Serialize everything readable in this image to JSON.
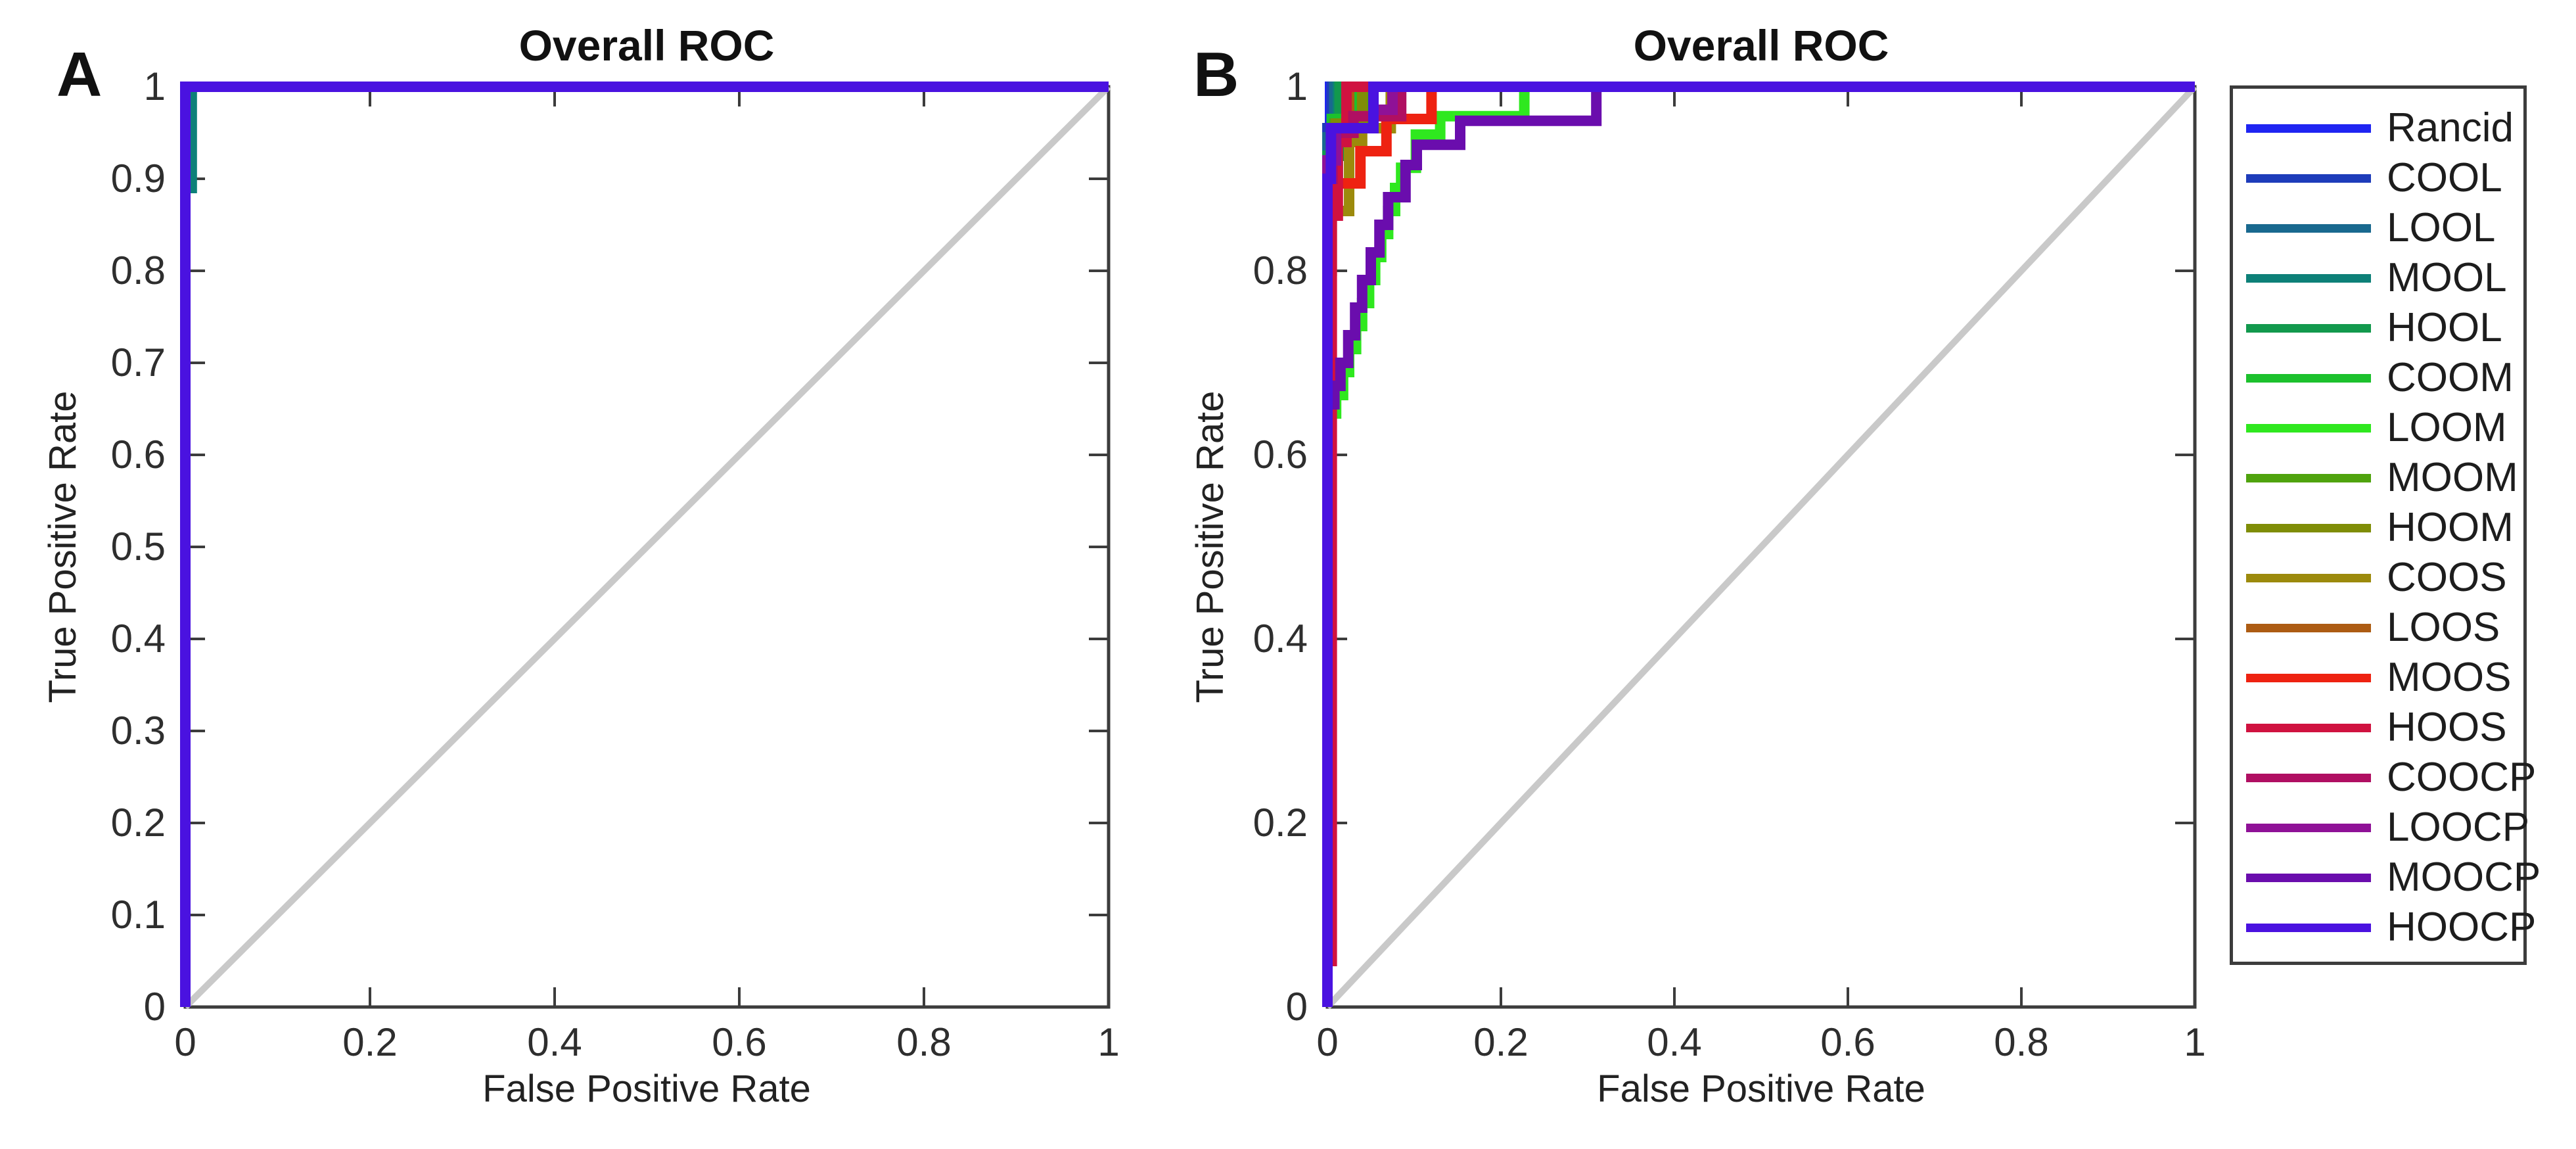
{
  "figure": {
    "background": "#ffffff",
    "axis_color": "#3c3c3c",
    "reference_line_color": "#c9c9c9",
    "text_color": "#222222"
  },
  "chart_data": [
    {
      "type": "line",
      "panel_label": "A",
      "title": "Overall ROC",
      "xlabel": "False Positive Rate",
      "ylabel": "True Positive Rate",
      "xlim": [
        0,
        1
      ],
      "ylim": [
        0,
        1
      ],
      "xticks": [
        0,
        0.2,
        0.4,
        0.6,
        0.8,
        1
      ],
      "yticks": [
        0,
        0.1,
        0.2,
        0.3,
        0.4,
        0.5,
        0.6,
        0.7,
        0.8,
        0.9,
        1
      ],
      "grid": false,
      "reference_diagonal": true,
      "legend_position": "none",
      "series": [
        {
          "name": "Rancid",
          "color": "#1f25f2",
          "points": [
            [
              0,
              0
            ],
            [
              0,
              1
            ],
            [
              1,
              1
            ]
          ]
        },
        {
          "name": "COOL",
          "color": "#1e3cba",
          "points": [
            [
              0,
              0
            ],
            [
              0,
              1
            ],
            [
              1,
              1
            ]
          ]
        },
        {
          "name": "LOOL",
          "color": "#19698f",
          "points": [
            [
              0,
              0
            ],
            [
              0,
              1
            ],
            [
              1,
              1
            ]
          ]
        },
        {
          "name": "MOOL",
          "color": "#0d8078",
          "points": [
            [
              0,
              0
            ],
            [
              0,
              0.89
            ],
            [
              0.007,
              0.89
            ],
            [
              0.007,
              1
            ],
            [
              1,
              1
            ]
          ]
        },
        {
          "name": "HOOL",
          "color": "#12994d",
          "points": [
            [
              0,
              0
            ],
            [
              0,
              1
            ],
            [
              1,
              1
            ]
          ]
        },
        {
          "name": "COOM",
          "color": "#1cc12d",
          "points": [
            [
              0,
              0
            ],
            [
              0,
              1
            ],
            [
              1,
              1
            ]
          ]
        },
        {
          "name": "LOOM",
          "color": "#2fe81f",
          "points": [
            [
              0,
              0
            ],
            [
              0,
              1
            ],
            [
              1,
              1
            ]
          ]
        },
        {
          "name": "MOOM",
          "color": "#4fa30e",
          "points": [
            [
              0,
              0
            ],
            [
              0,
              1
            ],
            [
              1,
              1
            ]
          ]
        },
        {
          "name": "HOOM",
          "color": "#7f8d07",
          "points": [
            [
              0,
              0
            ],
            [
              0,
              1
            ],
            [
              1,
              1
            ]
          ]
        },
        {
          "name": "COOS",
          "color": "#9c8a0c",
          "points": [
            [
              0,
              0
            ],
            [
              0,
              1
            ],
            [
              1,
              1
            ]
          ]
        },
        {
          "name": "LOOS",
          "color": "#ad5c13",
          "points": [
            [
              0,
              0
            ],
            [
              0,
              1
            ],
            [
              1,
              1
            ]
          ]
        },
        {
          "name": "MOOS",
          "color": "#ee2211",
          "points": [
            [
              0,
              0
            ],
            [
              0,
              1
            ],
            [
              1,
              1
            ]
          ]
        },
        {
          "name": "HOOS",
          "color": "#d01240",
          "points": [
            [
              0,
              0
            ],
            [
              0,
              1
            ],
            [
              1,
              1
            ]
          ]
        },
        {
          "name": "COOCP",
          "color": "#b00f62",
          "points": [
            [
              0,
              0
            ],
            [
              0,
              1
            ],
            [
              1,
              1
            ]
          ]
        },
        {
          "name": "LOOCP",
          "color": "#8f1197",
          "points": [
            [
              0,
              0
            ],
            [
              0,
              1
            ],
            [
              1,
              1
            ]
          ]
        },
        {
          "name": "MOOCP",
          "color": "#6a0dad",
          "points": [
            [
              0,
              0
            ],
            [
              0,
              1
            ],
            [
              1,
              1
            ]
          ]
        },
        {
          "name": "HOOCP",
          "color": "#4a12e0",
          "points": [
            [
              0,
              0
            ],
            [
              0,
              1
            ],
            [
              1,
              1
            ]
          ]
        }
      ]
    },
    {
      "type": "line",
      "panel_label": "B",
      "title": "Overall ROC",
      "xlabel": "False Positive Rate",
      "ylabel": "True Positive Rate",
      "xlim": [
        0,
        1
      ],
      "ylim": [
        0,
        1
      ],
      "xticks": [
        0,
        0.2,
        0.4,
        0.6,
        0.8,
        1
      ],
      "yticks": [
        0,
        0.2,
        0.4,
        0.6,
        0.8,
        1
      ],
      "grid": false,
      "reference_diagonal": true,
      "legend_position": "right-outside",
      "series": [
        {
          "name": "Rancid",
          "color": "#1f25f2",
          "points": [
            [
              0,
              0
            ],
            [
              0,
              0.93
            ],
            [
              0.003,
              0.93
            ],
            [
              0.003,
              1
            ],
            [
              1,
              1
            ]
          ]
        },
        {
          "name": "COOL",
          "color": "#1e3cba",
          "points": [
            [
              0,
              0
            ],
            [
              0,
              0.955
            ],
            [
              0.005,
              0.955
            ],
            [
              0.005,
              1
            ],
            [
              1,
              1
            ]
          ]
        },
        {
          "name": "LOOL",
          "color": "#19698f",
          "points": [
            [
              0,
              0
            ],
            [
              0,
              0.945
            ],
            [
              0.008,
              0.945
            ],
            [
              0.008,
              1
            ],
            [
              1,
              1
            ]
          ]
        },
        {
          "name": "MOOL",
          "color": "#0d8078",
          "points": [
            [
              0,
              0
            ],
            [
              0,
              0.9
            ],
            [
              0.012,
              0.9
            ],
            [
              0.012,
              1
            ],
            [
              1,
              1
            ]
          ]
        },
        {
          "name": "HOOL",
          "color": "#12994d",
          "points": [
            [
              0,
              0
            ],
            [
              0,
              0.925
            ],
            [
              0.014,
              0.925
            ],
            [
              0.014,
              1
            ],
            [
              1,
              1
            ]
          ]
        },
        {
          "name": "COOM",
          "color": "#1cc12d",
          "points": [
            [
              0,
              0
            ],
            [
              0,
              0.91
            ],
            [
              0.005,
              0.91
            ],
            [
              0.005,
              0.965
            ],
            [
              0.035,
              0.965
            ],
            [
              0.035,
              1
            ],
            [
              1,
              1
            ]
          ]
        },
        {
          "name": "LOOM",
          "color": "#2fe81f",
          "points": [
            [
              0,
              0
            ],
            [
              0,
              0.645
            ],
            [
              0.01,
              0.645
            ],
            [
              0.01,
              0.665
            ],
            [
              0.018,
              0.665
            ],
            [
              0.018,
              0.69
            ],
            [
              0.025,
              0.69
            ],
            [
              0.025,
              0.715
            ],
            [
              0.033,
              0.715
            ],
            [
              0.033,
              0.74
            ],
            [
              0.04,
              0.74
            ],
            [
              0.04,
              0.765
            ],
            [
              0.048,
              0.765
            ],
            [
              0.048,
              0.79
            ],
            [
              0.055,
              0.79
            ],
            [
              0.055,
              0.815
            ],
            [
              0.062,
              0.815
            ],
            [
              0.062,
              0.84
            ],
            [
              0.07,
              0.84
            ],
            [
              0.07,
              0.865
            ],
            [
              0.078,
              0.865
            ],
            [
              0.078,
              0.89
            ],
            [
              0.085,
              0.89
            ],
            [
              0.085,
              0.912
            ],
            [
              0.102,
              0.912
            ],
            [
              0.102,
              0.948
            ],
            [
              0.13,
              0.948
            ],
            [
              0.13,
              0.968
            ],
            [
              0.227,
              0.968
            ],
            [
              0.227,
              1
            ],
            [
              1,
              1
            ]
          ]
        },
        {
          "name": "MOOM",
          "color": "#4fa30e",
          "points": [
            [
              0,
              0
            ],
            [
              0,
              0.9
            ],
            [
              0.008,
              0.9
            ],
            [
              0.008,
              0.96
            ],
            [
              0.048,
              0.96
            ],
            [
              0.048,
              1
            ],
            [
              1,
              1
            ]
          ]
        },
        {
          "name": "HOOM",
          "color": "#7f8d07",
          "points": [
            [
              0,
              0
            ],
            [
              0,
              0.85
            ],
            [
              0.004,
              0.85
            ],
            [
              0.004,
              0.93
            ],
            [
              0.01,
              0.93
            ],
            [
              0.01,
              0.96
            ],
            [
              0.04,
              0.96
            ],
            [
              0.04,
              1
            ],
            [
              1,
              1
            ]
          ]
        },
        {
          "name": "COOS",
          "color": "#9c8a0c",
          "points": [
            [
              0,
              0
            ],
            [
              0,
              0.8
            ],
            [
              0.005,
              0.8
            ],
            [
              0.005,
              0.865
            ],
            [
              0.025,
              0.865
            ],
            [
              0.025,
              0.94
            ],
            [
              0.04,
              0.94
            ],
            [
              0.04,
              0.955
            ],
            [
              0.073,
              0.955
            ],
            [
              0.073,
              1
            ],
            [
              1,
              1
            ]
          ]
        },
        {
          "name": "LOOS",
          "color": "#ad5c13",
          "points": [
            [
              0,
              0
            ],
            [
              0,
              0.88
            ],
            [
              0.006,
              0.88
            ],
            [
              0.006,
              0.95
            ],
            [
              0.025,
              0.95
            ],
            [
              0.025,
              1
            ],
            [
              1,
              1
            ]
          ]
        },
        {
          "name": "MOOS",
          "color": "#ee2211",
          "points": [
            [
              0,
              0
            ],
            [
              0,
              0.86
            ],
            [
              0.008,
              0.86
            ],
            [
              0.008,
              0.895
            ],
            [
              0.038,
              0.895
            ],
            [
              0.038,
              0.93
            ],
            [
              0.068,
              0.93
            ],
            [
              0.068,
              0.965
            ],
            [
              0.12,
              0.965
            ],
            [
              0.12,
              1
            ],
            [
              1,
              1
            ]
          ]
        },
        {
          "name": "HOOS",
          "color": "#d01240",
          "points": [
            [
              0,
              0
            ],
            [
              0,
              0.05
            ],
            [
              0.005,
              0.05
            ],
            [
              0.005,
              0.86
            ],
            [
              0.012,
              0.86
            ],
            [
              0.012,
              0.94
            ],
            [
              0.022,
              0.94
            ],
            [
              0.022,
              1
            ],
            [
              1,
              1
            ]
          ]
        },
        {
          "name": "COOCP",
          "color": "#b00f62",
          "points": [
            [
              0,
              0
            ],
            [
              0,
              0.9
            ],
            [
              0.006,
              0.9
            ],
            [
              0.006,
              0.95
            ],
            [
              0.03,
              0.95
            ],
            [
              0.03,
              0.968
            ],
            [
              0.085,
              0.968
            ],
            [
              0.085,
              1
            ],
            [
              1,
              1
            ]
          ]
        },
        {
          "name": "LOOCP",
          "color": "#8f1197",
          "points": [
            [
              0,
              0
            ],
            [
              0,
              0.92
            ],
            [
              0.01,
              0.92
            ],
            [
              0.01,
              0.955
            ],
            [
              0.053,
              0.955
            ],
            [
              0.053,
              0.975
            ],
            [
              0.075,
              0.975
            ],
            [
              0.075,
              1
            ],
            [
              1,
              1
            ]
          ]
        },
        {
          "name": "MOOCP",
          "color": "#6a0dad",
          "points": [
            [
              0,
              0
            ],
            [
              0,
              0.655
            ],
            [
              0.008,
              0.655
            ],
            [
              0.008,
              0.675
            ],
            [
              0.015,
              0.675
            ],
            [
              0.015,
              0.7
            ],
            [
              0.024,
              0.7
            ],
            [
              0.024,
              0.73
            ],
            [
              0.032,
              0.73
            ],
            [
              0.032,
              0.76
            ],
            [
              0.04,
              0.76
            ],
            [
              0.04,
              0.79
            ],
            [
              0.05,
              0.79
            ],
            [
              0.05,
              0.82
            ],
            [
              0.06,
              0.82
            ],
            [
              0.06,
              0.85
            ],
            [
              0.07,
              0.85
            ],
            [
              0.07,
              0.88
            ],
            [
              0.09,
              0.88
            ],
            [
              0.09,
              0.915
            ],
            [
              0.103,
              0.915
            ],
            [
              0.103,
              0.937
            ],
            [
              0.153,
              0.937
            ],
            [
              0.153,
              0.963
            ],
            [
              0.31,
              0.963
            ],
            [
              0.31,
              1
            ],
            [
              1,
              1
            ]
          ]
        },
        {
          "name": "HOOCP",
          "color": "#4a12e0",
          "points": [
            [
              0,
              0
            ],
            [
              0,
              0.9
            ],
            [
              0.004,
              0.9
            ],
            [
              0.004,
              0.955
            ],
            [
              0.053,
              0.955
            ],
            [
              0.053,
              1
            ],
            [
              1,
              1
            ]
          ]
        }
      ]
    }
  ]
}
